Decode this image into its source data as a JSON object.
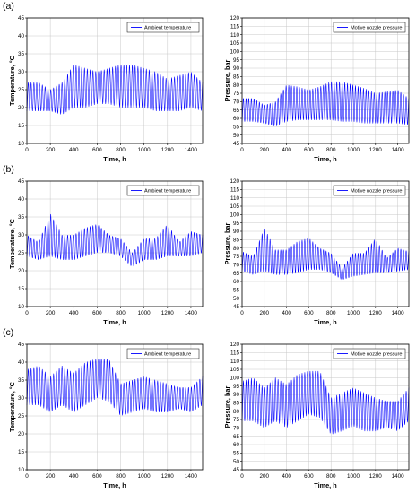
{
  "panel_labels": [
    "(a)",
    "(b)",
    "(c)"
  ],
  "chart_data": [
    {
      "panel": "(a)",
      "type": "line",
      "title": "",
      "xlabel": "Time, h",
      "ylabel": "Temperature, °C",
      "xlim": [
        0,
        1500
      ],
      "ylim": [
        10,
        45
      ],
      "xticks": [
        0,
        200,
        400,
        600,
        800,
        1000,
        1200,
        1400
      ],
      "yticks": [
        10,
        15,
        20,
        25,
        30,
        35,
        40,
        45
      ],
      "legend_placement": "top-right",
      "grid": true,
      "series": [
        {
          "name": "Ambient temperature",
          "color": "#0000ff",
          "x": [
            0,
            100,
            200,
            300,
            400,
            500,
            600,
            700,
            800,
            900,
            1000,
            1100,
            1200,
            1300,
            1400,
            1500
          ],
          "low": [
            19,
            19,
            19,
            18,
            20,
            20,
            21,
            21,
            20,
            20,
            20,
            19,
            19,
            19,
            20,
            19
          ],
          "high": [
            27,
            27,
            25,
            27,
            32,
            31,
            30,
            31,
            32,
            32,
            31,
            30,
            28,
            29,
            30,
            27
          ]
        }
      ]
    },
    {
      "panel": "(a)",
      "type": "line",
      "title": "",
      "xlabel": "Time, h",
      "ylabel": "Pressure, bar",
      "xlim": [
        0,
        1500
      ],
      "ylim": [
        45,
        120
      ],
      "xticks": [
        0,
        200,
        400,
        600,
        800,
        1000,
        1200,
        1400
      ],
      "yticks": [
        45,
        50,
        55,
        60,
        65,
        70,
        75,
        80,
        85,
        90,
        95,
        100,
        105,
        110,
        115,
        120
      ],
      "legend_placement": "top-right",
      "grid": true,
      "series": [
        {
          "name": "Motive nozzle pressure",
          "color": "#0000ff",
          "x": [
            0,
            100,
            200,
            300,
            400,
            500,
            600,
            700,
            800,
            900,
            1000,
            1100,
            1200,
            1300,
            1400,
            1500
          ],
          "low": [
            58,
            58,
            57,
            55,
            58,
            59,
            59,
            59,
            59,
            58,
            58,
            57,
            57,
            57,
            57,
            56
          ],
          "high": [
            72,
            72,
            68,
            70,
            80,
            79,
            77,
            79,
            82,
            82,
            80,
            78,
            75,
            76,
            77,
            72
          ]
        }
      ]
    },
    {
      "panel": "(b)",
      "type": "line",
      "title": "",
      "xlabel": "Time, h",
      "ylabel": "Temperature, °C",
      "xlim": [
        0,
        1500
      ],
      "ylim": [
        10,
        45
      ],
      "xticks": [
        0,
        200,
        400,
        600,
        800,
        1000,
        1200,
        1400
      ],
      "yticks": [
        10,
        15,
        20,
        25,
        30,
        35,
        40,
        45
      ],
      "legend_placement": "top-right",
      "grid": true,
      "series": [
        {
          "name": "Ambient temperature",
          "color": "#0000ff",
          "x": [
            0,
            100,
            200,
            300,
            400,
            500,
            600,
            700,
            800,
            900,
            1000,
            1100,
            1200,
            1300,
            1400,
            1500
          ],
          "low": [
            24,
            23,
            24,
            23,
            23,
            24,
            25,
            25,
            24,
            21,
            23,
            23,
            24,
            24,
            24,
            25
          ],
          "high": [
            30,
            28,
            36,
            30,
            30,
            32,
            33,
            30,
            29,
            25,
            29,
            29,
            33,
            28,
            31,
            30
          ]
        }
      ]
    },
    {
      "panel": "(b)",
      "type": "line",
      "title": "",
      "xlabel": "Time, h",
      "ylabel": "Pressure, bar",
      "xlim": [
        0,
        1500
      ],
      "ylim": [
        45,
        120
      ],
      "xticks": [
        0,
        200,
        400,
        600,
        800,
        1000,
        1200,
        1400
      ],
      "yticks": [
        45,
        50,
        55,
        60,
        65,
        70,
        75,
        80,
        85,
        90,
        95,
        100,
        105,
        110,
        115,
        120
      ],
      "legend_placement": "top-right",
      "grid": true,
      "series": [
        {
          "name": "Motive nozzle pressure",
          "color": "#0000ff",
          "x": [
            0,
            100,
            200,
            300,
            400,
            500,
            600,
            700,
            800,
            900,
            1000,
            1100,
            1200,
            1300,
            1400,
            1500
          ],
          "low": [
            66,
            64,
            66,
            64,
            64,
            65,
            67,
            67,
            65,
            61,
            63,
            64,
            65,
            65,
            66,
            67
          ],
          "high": [
            78,
            75,
            92,
            79,
            79,
            84,
            86,
            80,
            77,
            68,
            77,
            77,
            86,
            74,
            80,
            78
          ]
        }
      ]
    },
    {
      "panel": "(c)",
      "type": "line",
      "title": "",
      "xlabel": "Time, h",
      "ylabel": "Temperature, °C",
      "xlim": [
        0,
        1500
      ],
      "ylim": [
        10,
        45
      ],
      "xticks": [
        0,
        200,
        400,
        600,
        800,
        1000,
        1200,
        1400
      ],
      "yticks": [
        10,
        15,
        20,
        25,
        30,
        35,
        40,
        45
      ],
      "legend_placement": "top-right",
      "grid": true,
      "series": [
        {
          "name": "Ambient temperature",
          "color": "#0000ff",
          "x": [
            0,
            100,
            200,
            300,
            400,
            500,
            600,
            700,
            800,
            900,
            1000,
            1100,
            1200,
            1300,
            1400,
            1500
          ],
          "low": [
            28,
            28,
            26,
            28,
            26,
            28,
            30,
            29,
            25,
            26,
            27,
            26,
            26,
            27,
            26,
            28
          ],
          "high": [
            38,
            39,
            36,
            39,
            37,
            40,
            41,
            41,
            34,
            35,
            36,
            35,
            34,
            33,
            33,
            36
          ]
        }
      ]
    },
    {
      "panel": "(c)",
      "type": "line",
      "title": "",
      "xlabel": "Time, h",
      "ylabel": "Pressure, bar",
      "xlim": [
        0,
        1500
      ],
      "ylim": [
        45,
        120
      ],
      "xticks": [
        0,
        200,
        400,
        600,
        800,
        1000,
        1200,
        1400
      ],
      "yticks": [
        45,
        50,
        55,
        60,
        65,
        70,
        75,
        80,
        85,
        90,
        95,
        100,
        105,
        110,
        115,
        120
      ],
      "legend_placement": "top-right",
      "grid": true,
      "series": [
        {
          "name": "Motive nozzle pressure",
          "color": "#0000ff",
          "x": [
            0,
            100,
            200,
            300,
            400,
            500,
            600,
            700,
            800,
            900,
            1000,
            1100,
            1200,
            1300,
            1400,
            1500
          ],
          "low": [
            74,
            74,
            70,
            74,
            70,
            74,
            78,
            76,
            66,
            68,
            71,
            68,
            68,
            70,
            68,
            74
          ],
          "high": [
            98,
            100,
            94,
            100,
            96,
            102,
            104,
            104,
            88,
            91,
            94,
            91,
            88,
            86,
            86,
            94
          ]
        }
      ]
    }
  ]
}
